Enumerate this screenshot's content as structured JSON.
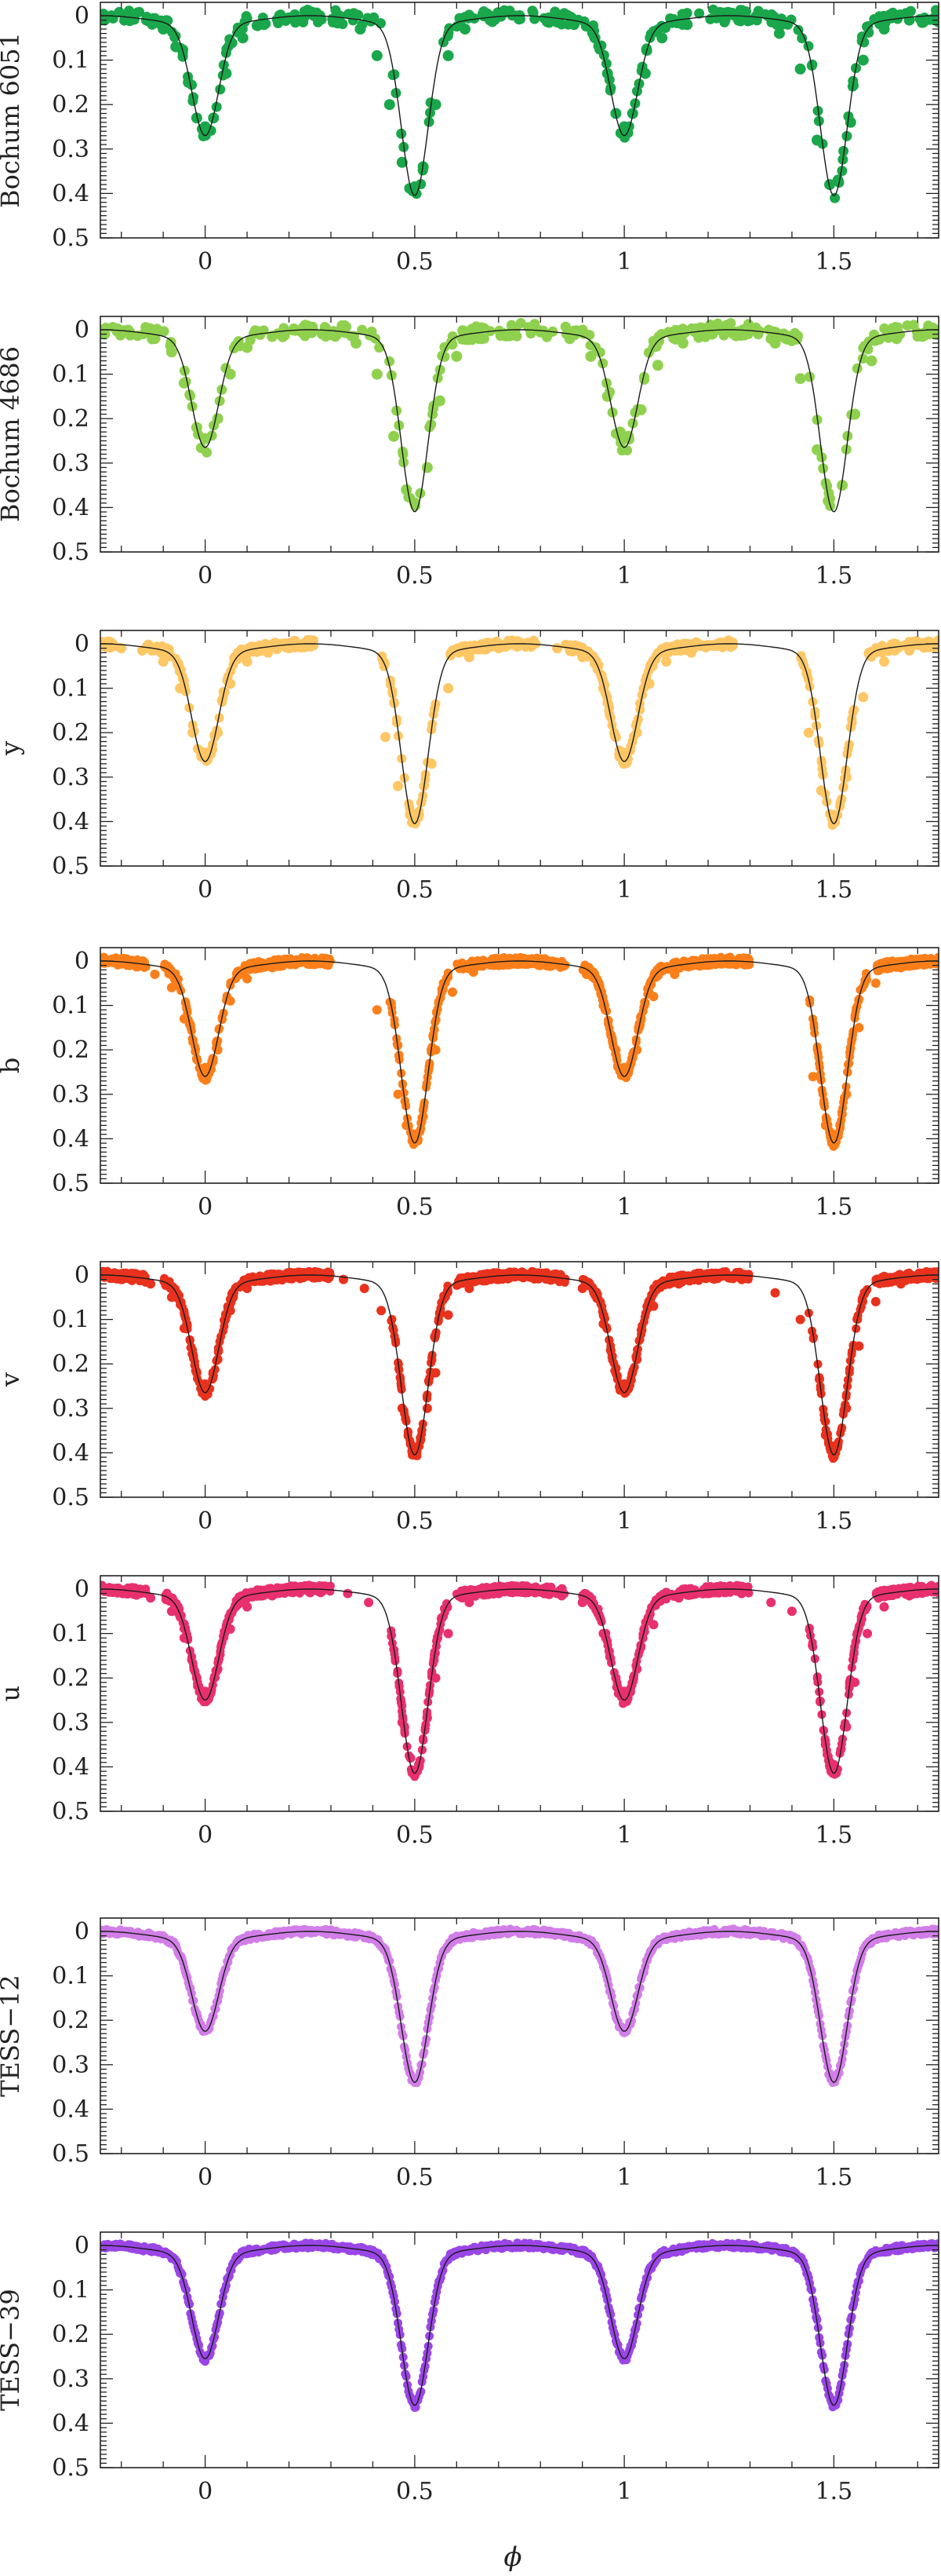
{
  "chart_data": [
    {
      "type": "scatter",
      "ylabel": "Bochum 6051",
      "color": "#1aa64a",
      "density": "sparse",
      "primary_depth": 0.25,
      "secondary_depth": 0.385,
      "xlim": [
        -0.25,
        1.75
      ],
      "ylim": [
        0.5,
        -0.03
      ],
      "xticks": [
        0,
        0.5,
        1,
        1.5
      ],
      "xtick_labels": [
        "0",
        "0.5",
        "1",
        "1.5"
      ],
      "yticks": [
        0,
        0.1,
        0.2,
        0.3,
        0.4,
        0.5
      ],
      "ytick_labels": [
        "0",
        "0.1",
        "0.2",
        "0.3",
        "0.4",
        "0.5"
      ],
      "points": [
        [
          -0.24,
          0.01
        ],
        [
          -0.19,
          0.005
        ],
        [
          -0.14,
          0.01
        ],
        [
          -0.1,
          0.03
        ],
        [
          -0.07,
          0.07
        ],
        [
          -0.04,
          0.15
        ],
        [
          -0.02,
          0.23
        ],
        [
          0.0,
          0.25
        ],
        [
          0.02,
          0.23
        ],
        [
          0.05,
          0.13
        ],
        [
          0.09,
          0.05
        ],
        [
          0.14,
          0.02
        ],
        [
          0.2,
          0.005
        ],
        [
          0.26,
          0.0
        ],
        [
          0.32,
          0.01
        ],
        [
          0.37,
          0.03
        ],
        [
          0.41,
          0.09
        ],
        [
          0.44,
          0.2
        ],
        [
          0.47,
          0.33
        ],
        [
          0.5,
          0.385
        ],
        [
          0.52,
          0.34
        ],
        [
          0.55,
          0.2
        ],
        [
          0.58,
          0.09
        ],
        [
          0.62,
          0.03
        ],
        [
          0.68,
          0.01
        ],
        [
          0.75,
          0.0
        ],
        [
          0.82,
          0.005
        ],
        [
          0.88,
          0.02
        ],
        [
          0.93,
          0.05
        ],
        [
          0.96,
          0.13
        ],
        [
          0.98,
          0.22
        ],
        [
          1.0,
          0.25
        ],
        [
          1.02,
          0.22
        ],
        [
          1.05,
          0.13
        ],
        [
          1.09,
          0.05
        ],
        [
          1.15,
          0.02
        ],
        [
          1.22,
          0.005
        ],
        [
          1.3,
          0.01
        ],
        [
          1.37,
          0.04
        ],
        [
          1.42,
          0.12
        ],
        [
          1.46,
          0.28
        ],
        [
          1.49,
          0.38
        ],
        [
          1.51,
          0.37
        ],
        [
          1.54,
          0.24
        ],
        [
          1.57,
          0.1
        ],
        [
          1.62,
          0.03
        ],
        [
          1.68,
          0.01
        ],
        [
          1.74,
          0.005
        ]
      ]
    },
    {
      "type": "scatter",
      "ylabel": "Bochum 4686",
      "color": "#8fd14f",
      "density": "sparse",
      "primary_depth": 0.245,
      "secondary_depth": 0.39,
      "xlim": [
        -0.25,
        1.75
      ],
      "ylim": [
        0.5,
        -0.03
      ],
      "xticks": [
        0,
        0.5,
        1,
        1.5
      ],
      "xtick_labels": [
        "0",
        "0.5",
        "1",
        "1.5"
      ],
      "yticks": [
        0,
        0.1,
        0.2,
        0.3,
        0.4,
        0.5
      ],
      "ytick_labels": [
        "0",
        "0.1",
        "0.2",
        "0.3",
        "0.4",
        "0.5"
      ],
      "points": [
        [
          -0.24,
          0.01
        ],
        [
          -0.18,
          0.01
        ],
        [
          -0.12,
          0.02
        ],
        [
          -0.08,
          0.05
        ],
        [
          -0.05,
          0.12
        ],
        [
          -0.02,
          0.22
        ],
        [
          0.0,
          0.245
        ],
        [
          0.03,
          0.2
        ],
        [
          0.06,
          0.1
        ],
        [
          0.1,
          0.04
        ],
        [
          0.16,
          0.015
        ],
        [
          0.23,
          0.005
        ],
        [
          0.3,
          0.01
        ],
        [
          0.36,
          0.03
        ],
        [
          0.41,
          0.1
        ],
        [
          0.45,
          0.24
        ],
        [
          0.48,
          0.36
        ],
        [
          0.5,
          0.39
        ],
        [
          0.53,
          0.31
        ],
        [
          0.56,
          0.16
        ],
        [
          0.6,
          0.06
        ],
        [
          0.66,
          0.02
        ],
        [
          0.73,
          0.005
        ],
        [
          0.8,
          0.005
        ],
        [
          0.87,
          0.02
        ],
        [
          0.92,
          0.06
        ],
        [
          0.96,
          0.15
        ],
        [
          0.99,
          0.23
        ],
        [
          1.01,
          0.24
        ],
        [
          1.04,
          0.18
        ],
        [
          1.08,
          0.08
        ],
        [
          1.14,
          0.03
        ],
        [
          1.21,
          0.01
        ],
        [
          1.29,
          0.01
        ],
        [
          1.36,
          0.03
        ],
        [
          1.42,
          0.11
        ],
        [
          1.46,
          0.27
        ],
        [
          1.49,
          0.38
        ],
        [
          1.52,
          0.35
        ],
        [
          1.55,
          0.19
        ],
        [
          1.59,
          0.07
        ],
        [
          1.65,
          0.02
        ],
        [
          1.72,
          0.005
        ]
      ]
    },
    {
      "type": "scatter",
      "ylabel": "y",
      "color": "#fdc766",
      "density": "medium",
      "primary_depth": 0.245,
      "secondary_depth": 0.385,
      "xlim": [
        -0.25,
        1.75
      ],
      "ylim": [
        0.5,
        -0.03
      ],
      "xticks": [
        0,
        0.5,
        1,
        1.5
      ],
      "xtick_labels": [
        "0",
        "0.5",
        "1",
        "1.5"
      ],
      "yticks": [
        0,
        0.1,
        0.2,
        0.3,
        0.4,
        0.5
      ],
      "ytick_labels": [
        "0",
        "0.1",
        "0.2",
        "0.3",
        "0.4",
        "0.5"
      ],
      "points": [
        [
          -0.24,
          0.005
        ],
        [
          -0.2,
          0.01
        ],
        [
          -0.15,
          0.015
        ],
        [
          -0.1,
          0.04
        ],
        [
          -0.06,
          0.1
        ],
        [
          -0.03,
          0.2
        ],
        [
          0.0,
          0.245
        ],
        [
          0.03,
          0.2
        ],
        [
          0.06,
          0.09
        ],
        [
          0.1,
          0.04
        ],
        [
          0.15,
          0.02
        ],
        [
          0.2,
          0.01
        ],
        [
          0.25,
          0.0
        ],
        [
          0.43,
          0.21
        ],
        [
          0.46,
          0.32
        ],
        [
          0.49,
          0.38
        ],
        [
          0.51,
          0.385
        ],
        [
          0.54,
          0.27
        ],
        [
          0.58,
          0.1
        ],
        [
          0.63,
          0.03
        ],
        [
          0.7,
          0.01
        ],
        [
          0.77,
          0.0
        ],
        [
          0.84,
          0.01
        ],
        [
          0.9,
          0.03
        ],
        [
          0.95,
          0.1
        ],
        [
          0.98,
          0.21
        ],
        [
          1.0,
          0.245
        ],
        [
          1.03,
          0.2
        ],
        [
          1.06,
          0.09
        ],
        [
          1.1,
          0.04
        ],
        [
          1.16,
          0.02
        ],
        [
          1.22,
          0.005
        ],
        [
          1.44,
          0.2
        ],
        [
          1.47,
          0.33
        ],
        [
          1.5,
          0.385
        ],
        [
          1.53,
          0.3
        ],
        [
          1.57,
          0.12
        ],
        [
          1.62,
          0.04
        ],
        [
          1.68,
          0.015
        ],
        [
          1.74,
          0.005
        ]
      ]
    },
    {
      "type": "scatter",
      "ylabel": "b",
      "color": "#fa7f1a",
      "density": "dense",
      "primary_depth": 0.24,
      "secondary_depth": 0.39,
      "xlim": [
        -0.25,
        1.75
      ],
      "ylim": [
        0.5,
        -0.03
      ],
      "xticks": [
        0,
        0.5,
        1,
        1.5
      ],
      "xtick_labels": [
        "0",
        "0.5",
        "1",
        "1.5"
      ],
      "yticks": [
        0,
        0.1,
        0.2,
        0.3,
        0.4,
        0.5
      ],
      "ytick_labels": [
        "0",
        "0.1",
        "0.2",
        "0.3",
        "0.4",
        "0.5"
      ],
      "points": [
        [
          -0.24,
          0.005
        ],
        [
          -0.18,
          0.01
        ],
        [
          -0.12,
          0.03
        ],
        [
          -0.08,
          0.06
        ],
        [
          -0.05,
          0.13
        ],
        [
          -0.02,
          0.22
        ],
        [
          0.0,
          0.24
        ],
        [
          0.03,
          0.2
        ],
        [
          0.06,
          0.09
        ],
        [
          0.1,
          0.04
        ],
        [
          0.16,
          0.015
        ],
        [
          0.22,
          0.005
        ],
        [
          0.27,
          0.0
        ],
        [
          0.41,
          0.11
        ],
        [
          0.46,
          0.3
        ],
        [
          0.48,
          0.37
        ],
        [
          0.5,
          0.39
        ],
        [
          0.52,
          0.35
        ],
        [
          0.55,
          0.2
        ],
        [
          0.59,
          0.07
        ],
        [
          0.64,
          0.025
        ],
        [
          0.7,
          0.01
        ],
        [
          0.78,
          0.0
        ],
        [
          0.85,
          0.01
        ],
        [
          0.91,
          0.03
        ],
        [
          0.95,
          0.1
        ],
        [
          0.98,
          0.2
        ],
        [
          1.0,
          0.24
        ],
        [
          1.03,
          0.2
        ],
        [
          1.07,
          0.08
        ],
        [
          1.12,
          0.03
        ],
        [
          1.18,
          0.01
        ],
        [
          1.25,
          0.005
        ],
        [
          1.45,
          0.26
        ],
        [
          1.48,
          0.37
        ],
        [
          1.5,
          0.39
        ],
        [
          1.53,
          0.3
        ],
        [
          1.56,
          0.15
        ],
        [
          1.6,
          0.05
        ],
        [
          1.66,
          0.015
        ],
        [
          1.74,
          0.005
        ]
      ]
    },
    {
      "type": "scatter",
      "ylabel": "v",
      "color": "#e8321e",
      "density": "dense",
      "primary_depth": 0.245,
      "secondary_depth": 0.385,
      "xlim": [
        -0.25,
        1.75
      ],
      "ylim": [
        0.5,
        -0.03
      ],
      "xticks": [
        0,
        0.5,
        1,
        1.5
      ],
      "xtick_labels": [
        "0",
        "0.5",
        "1",
        "1.5"
      ],
      "yticks": [
        0,
        0.1,
        0.2,
        0.3,
        0.4,
        0.5
      ],
      "ytick_labels": [
        "0",
        "0.1",
        "0.2",
        "0.3",
        "0.4",
        "0.5"
      ],
      "points": [
        [
          -0.24,
          0.005
        ],
        [
          -0.2,
          0.01
        ],
        [
          -0.13,
          0.02
        ],
        [
          -0.08,
          0.05
        ],
        [
          -0.05,
          0.12
        ],
        [
          -0.02,
          0.22
        ],
        [
          0.0,
          0.245
        ],
        [
          0.03,
          0.19
        ],
        [
          0.06,
          0.08
        ],
        [
          0.1,
          0.03
        ],
        [
          0.16,
          0.01
        ],
        [
          0.22,
          0.0
        ],
        [
          0.27,
          0.005
        ],
        [
          0.33,
          0.01
        ],
        [
          0.38,
          0.03
        ],
        [
          0.42,
          0.08
        ],
        [
          0.47,
          0.3
        ],
        [
          0.49,
          0.38
        ],
        [
          0.51,
          0.385
        ],
        [
          0.53,
          0.3
        ],
        [
          0.55,
          0.22
        ],
        [
          0.58,
          0.09
        ],
        [
          0.63,
          0.03
        ],
        [
          0.7,
          0.01
        ],
        [
          0.77,
          0.0
        ],
        [
          0.84,
          0.01
        ],
        [
          0.9,
          0.03
        ],
        [
          0.95,
          0.11
        ],
        [
          0.98,
          0.21
        ],
        [
          1.0,
          0.245
        ],
        [
          1.03,
          0.19
        ],
        [
          1.07,
          0.07
        ],
        [
          1.13,
          0.02
        ],
        [
          1.2,
          0.005
        ],
        [
          1.28,
          0.01
        ],
        [
          1.36,
          0.04
        ],
        [
          1.42,
          0.1
        ],
        [
          1.48,
          0.36
        ],
        [
          1.5,
          0.385
        ],
        [
          1.53,
          0.3
        ],
        [
          1.56,
          0.16
        ],
        [
          1.6,
          0.06
        ],
        [
          1.66,
          0.02
        ],
        [
          1.74,
          0.005
        ]
      ]
    },
    {
      "type": "scatter",
      "ylabel": "u",
      "color": "#e8306e",
      "density": "dense",
      "primary_depth": 0.23,
      "secondary_depth": 0.395,
      "xlim": [
        -0.25,
        1.75
      ],
      "ylim": [
        0.5,
        -0.03
      ],
      "xticks": [
        0,
        0.5,
        1,
        1.5
      ],
      "xtick_labels": [
        "0",
        "0.5",
        "1",
        "1.5"
      ],
      "yticks": [
        0,
        0.1,
        0.2,
        0.3,
        0.4,
        0.5
      ],
      "ytick_labels": [
        "0",
        "0.1",
        "0.2",
        "0.3",
        "0.4",
        "0.5"
      ],
      "points": [
        [
          -0.24,
          0.005
        ],
        [
          -0.19,
          0.01
        ],
        [
          -0.13,
          0.02
        ],
        [
          -0.08,
          0.05
        ],
        [
          -0.05,
          0.11
        ],
        [
          -0.02,
          0.2
        ],
        [
          0.0,
          0.23
        ],
        [
          0.03,
          0.18
        ],
        [
          0.06,
          0.09
        ],
        [
          0.1,
          0.04
        ],
        [
          0.16,
          0.015
        ],
        [
          0.22,
          0.005
        ],
        [
          0.28,
          0.005
        ],
        [
          0.34,
          0.01
        ],
        [
          0.39,
          0.03
        ],
        [
          0.47,
          0.3
        ],
        [
          0.49,
          0.38
        ],
        [
          0.51,
          0.395
        ],
        [
          0.53,
          0.29
        ],
        [
          0.55,
          0.2
        ],
        [
          0.58,
          0.1
        ],
        [
          0.63,
          0.03
        ],
        [
          0.7,
          0.01
        ],
        [
          0.77,
          0.005
        ],
        [
          0.84,
          0.01
        ],
        [
          0.9,
          0.03
        ],
        [
          0.95,
          0.1
        ],
        [
          0.98,
          0.2
        ],
        [
          1.0,
          0.23
        ],
        [
          1.03,
          0.18
        ],
        [
          1.07,
          0.08
        ],
        [
          1.13,
          0.02
        ],
        [
          1.2,
          0.01
        ],
        [
          1.28,
          0.01
        ],
        [
          1.35,
          0.03
        ],
        [
          1.4,
          0.05
        ],
        [
          1.48,
          0.35
        ],
        [
          1.5,
          0.395
        ],
        [
          1.53,
          0.31
        ],
        [
          1.55,
          0.21
        ],
        [
          1.58,
          0.1
        ],
        [
          1.62,
          0.04
        ],
        [
          1.68,
          0.015
        ],
        [
          1.74,
          0.005
        ]
      ]
    },
    {
      "type": "scatter",
      "ylabel": "TESS−12",
      "color": "#d27ee8",
      "density": "continuous",
      "primary_depth": 0.205,
      "secondary_depth": 0.32,
      "xlim": [
        -0.25,
        1.75
      ],
      "ylim": [
        0.5,
        -0.03
      ],
      "xticks": [
        0,
        0.5,
        1,
        1.5
      ],
      "xtick_labels": [
        "0",
        "0.5",
        "1",
        "1.5"
      ],
      "yticks": [
        0,
        0.1,
        0.2,
        0.3,
        0.4,
        0.5
      ],
      "ytick_labels": [
        "0",
        "0.1",
        "0.2",
        "0.3",
        "0.4",
        "0.5"
      ],
      "points": []
    },
    {
      "type": "scatter",
      "ylabel": "TESS−39",
      "color": "#9a46e6",
      "density": "continuous",
      "primary_depth": 0.235,
      "secondary_depth": 0.34,
      "xlim": [
        -0.25,
        1.75
      ],
      "ylim": [
        0.5,
        -0.03
      ],
      "xticks": [
        0,
        0.5,
        1,
        1.5
      ],
      "xtick_labels": [
        "0",
        "0.5",
        "1",
        "1.5"
      ],
      "yticks": [
        0,
        0.1,
        0.2,
        0.3,
        0.4,
        0.5
      ],
      "ytick_labels": [
        "0",
        "0.1",
        "0.2",
        "0.3",
        "0.4",
        "0.5"
      ],
      "points": []
    }
  ],
  "xlabel": "ϕ"
}
